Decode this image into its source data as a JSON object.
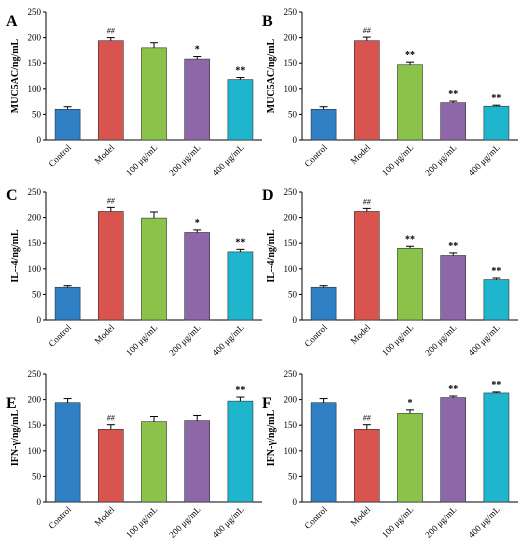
{
  "colors": [
    "#2e7fc3",
    "#d9534f",
    "#8bc34a",
    "#8e67a8",
    "#1fb5cc"
  ],
  "chart_data": [
    {
      "letter": "A",
      "type": "bar",
      "ylabel": "MUC5AC/ng/mL",
      "categories": [
        "Control",
        "Model",
        "100 μg/mL",
        "200 μg/mL",
        "400 μg/mL"
      ],
      "values": [
        60,
        194,
        180,
        158,
        118
      ],
      "errors": [
        5,
        6,
        10,
        5,
        4
      ],
      "significance": [
        "",
        "##",
        "",
        "*",
        "**"
      ],
      "ylim": [
        0,
        250
      ],
      "yticks": [
        "0",
        "50",
        "100",
        "150",
        "200",
        "250"
      ]
    },
    {
      "letter": "B",
      "type": "bar",
      "ylabel": "MUC5AC/ng/mL",
      "categories": [
        "Control",
        "Model",
        "100 μg/mL",
        "200 μg/mL",
        "400 μg/mL"
      ],
      "values": [
        60,
        194,
        147,
        73,
        66
      ],
      "errors": [
        5,
        7,
        5,
        3,
        2
      ],
      "significance": [
        "",
        "##",
        "**",
        "**",
        "**"
      ],
      "ylim": [
        0,
        250
      ],
      "yticks": [
        "0",
        "50",
        "100",
        "150",
        "200",
        "250"
      ]
    },
    {
      "letter": "C",
      "type": "bar",
      "ylabel": "IL--4/ng/mL",
      "categories": [
        "Control",
        "Model",
        "100 μg/mL",
        "200 μg/mL",
        "400 μg/mL"
      ],
      "values": [
        64,
        212,
        199,
        171,
        133
      ],
      "errors": [
        3,
        8,
        12,
        5,
        5
      ],
      "significance": [
        "",
        "##",
        "",
        "*",
        "**"
      ],
      "ylim": [
        0,
        250
      ],
      "yticks": [
        "0",
        "50",
        "100",
        "150",
        "200",
        "250"
      ]
    },
    {
      "letter": "D",
      "type": "bar",
      "ylabel": "IL--4/ng/mL",
      "categories": [
        "Control",
        "Model",
        "100 μg/mL",
        "200 μg/mL",
        "400 μg/mL"
      ],
      "values": [
        64,
        212,
        140,
        126,
        79
      ],
      "errors": [
        3,
        6,
        4,
        5,
        3
      ],
      "significance": [
        "",
        "##",
        "**",
        "**",
        "**"
      ],
      "ylim": [
        0,
        250
      ],
      "yticks": [
        "0",
        "50",
        "100",
        "150",
        "200",
        "250"
      ]
    },
    {
      "letter": "E",
      "type": "bar",
      "ylabel": "IFN-γ/ng/mL",
      "categories": [
        "Control",
        "Model",
        "100 μg/mL",
        "200 μg/mL",
        "400 μg/mL"
      ],
      "values": [
        194,
        142,
        157,
        159,
        197
      ],
      "errors": [
        8,
        9,
        10,
        10,
        8
      ],
      "significance": [
        "",
        "##",
        "",
        "",
        "**"
      ],
      "ylim": [
        0,
        250
      ],
      "yticks": [
        "0",
        "50",
        "100",
        "150",
        "200",
        "250"
      ]
    },
    {
      "letter": "F",
      "type": "bar",
      "ylabel": "IFN-γ/ng/mL",
      "categories": [
        "Control",
        "Model",
        "100 μg/mL",
        "200 μg/mL",
        "400 μg/mL"
      ],
      "values": [
        194,
        142,
        173,
        204,
        213
      ],
      "errors": [
        8,
        9,
        7,
        3,
        2
      ],
      "significance": [
        "",
        "##",
        "*",
        "**",
        "**"
      ],
      "ylim": [
        0,
        250
      ],
      "yticks": [
        "0",
        "50",
        "100",
        "150",
        "200",
        "250"
      ]
    }
  ]
}
